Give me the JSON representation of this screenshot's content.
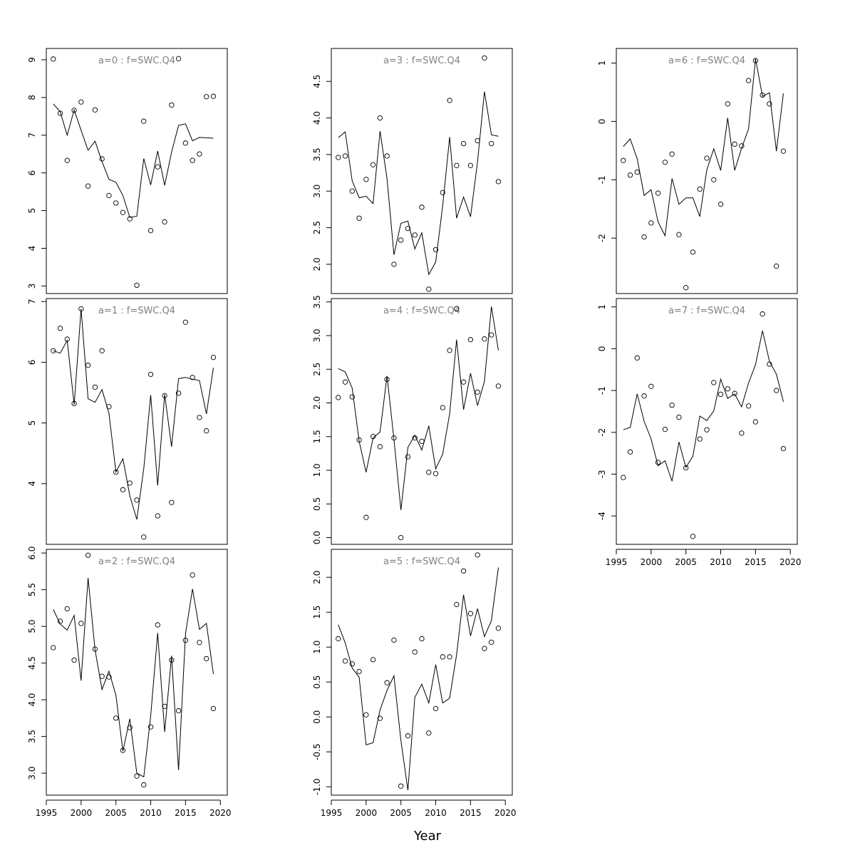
{
  "figure": {
    "xlabel": "Year"
  },
  "chart_data": [
    {
      "type": "line",
      "title": "a=0  :  f=SWC.Q4",
      "xlim": [
        1995,
        2021
      ],
      "ylim": [
        2.8,
        9.3
      ],
      "xticks": [
        1995,
        2000,
        2005,
        2010,
        2015,
        2020
      ],
      "xtick_labels_shown": false,
      "yticks": [
        3,
        4,
        5,
        6,
        7,
        8,
        9
      ],
      "x": [
        1996,
        1997,
        1998,
        1999,
        2000,
        2001,
        2002,
        2003,
        2004,
        2005,
        2006,
        2007,
        2008,
        2009,
        2010,
        2011,
        2012,
        2013,
        2014,
        2015,
        2016,
        2017,
        2018,
        2019
      ],
      "series": [
        {
          "name": "observed",
          "style": "points",
          "values": [
            9.02,
            7.58,
            6.33,
            7.66,
            7.88,
            5.65,
            7.67,
            6.37,
            5.4,
            5.2,
            4.95,
            4.78,
            3.02,
            7.37,
            4.47,
            6.16,
            4.7,
            7.8,
            9.03,
            6.79,
            6.33,
            6.5,
            8.02,
            8.03
          ]
        },
        {
          "name": "fitted",
          "style": "line",
          "values": [
            7.83,
            7.62,
            7.0,
            7.67,
            7.13,
            6.6,
            6.84,
            6.3,
            5.83,
            5.75,
            5.4,
            4.82,
            4.85,
            6.38,
            5.68,
            6.58,
            5.67,
            6.55,
            7.26,
            7.3,
            6.85,
            6.94,
            6.93,
            6.92
          ]
        }
      ]
    },
    {
      "type": "line",
      "title": "a=1  :  f=SWC.Q4",
      "xlim": [
        1995,
        2021
      ],
      "ylim": [
        3.0,
        7.05
      ],
      "xticks": [
        1995,
        2000,
        2005,
        2010,
        2015,
        2020
      ],
      "xtick_labels_shown": false,
      "yticks": [
        4,
        5,
        6,
        7
      ],
      "x": [
        1996,
        1997,
        1998,
        1999,
        2000,
        2001,
        2002,
        2003,
        2004,
        2005,
        2006,
        2007,
        2008,
        2009,
        2010,
        2011,
        2012,
        2013,
        2014,
        2015,
        2016,
        2017,
        2018,
        2019
      ],
      "series": [
        {
          "name": "observed",
          "style": "points",
          "values": [
            6.19,
            6.56,
            6.38,
            5.32,
            6.88,
            5.95,
            5.59,
            6.19,
            5.27,
            4.19,
            3.9,
            4.01,
            3.73,
            3.12,
            5.8,
            3.47,
            5.45,
            3.69,
            5.49,
            6.66,
            5.75,
            5.09,
            4.87,
            6.08
          ]
        },
        {
          "name": "fitted",
          "style": "line",
          "values": [
            6.19,
            6.15,
            6.36,
            5.3,
            6.88,
            5.4,
            5.34,
            5.55,
            5.16,
            4.19,
            4.41,
            3.8,
            3.41,
            4.25,
            5.46,
            3.97,
            5.47,
            4.61,
            5.73,
            5.75,
            5.72,
            5.7,
            5.15,
            5.91
          ]
        }
      ]
    },
    {
      "type": "line",
      "title": "a=2  :  f=SWC.Q4",
      "xlim": [
        1995,
        2021
      ],
      "ylim": [
        2.7,
        6.05
      ],
      "xticks": [
        1995,
        2000,
        2005,
        2010,
        2015,
        2020
      ],
      "xtick_labels_shown": true,
      "yticks": [
        3.0,
        3.5,
        4.0,
        4.5,
        5.0,
        5.5,
        6.0
      ],
      "x": [
        1996,
        1997,
        1998,
        1999,
        2000,
        2001,
        2002,
        2003,
        2004,
        2005,
        2006,
        2007,
        2008,
        2009,
        2010,
        2011,
        2012,
        2013,
        2014,
        2015,
        2016,
        2017,
        2018,
        2019
      ],
      "series": [
        {
          "name": "observed",
          "style": "points",
          "values": [
            4.71,
            5.07,
            5.24,
            4.54,
            5.04,
            5.97,
            4.69,
            4.32,
            4.31,
            3.75,
            3.31,
            3.62,
            2.96,
            2.84,
            3.63,
            5.02,
            3.91,
            4.54,
            3.85,
            4.81,
            5.7,
            4.78,
            4.56,
            3.88
          ]
        },
        {
          "name": "fitted",
          "style": "line",
          "values": [
            5.23,
            5.03,
            4.95,
            5.15,
            4.26,
            5.66,
            4.68,
            4.14,
            4.39,
            4.06,
            3.3,
            3.74,
            3.0,
            2.95,
            3.78,
            4.91,
            3.56,
            4.6,
            3.04,
            4.9,
            5.51,
            4.96,
            5.04,
            4.35
          ]
        }
      ]
    },
    {
      "type": "line",
      "title": "a=3  :  f=SWC.Q4",
      "xlim": [
        1995,
        2021
      ],
      "ylim": [
        1.6,
        4.95
      ],
      "xticks": [
        1995,
        2000,
        2005,
        2010,
        2015,
        2020
      ],
      "xtick_labels_shown": false,
      "yticks": [
        2.0,
        2.5,
        3.0,
        3.5,
        4.0,
        4.5
      ],
      "x": [
        1996,
        1997,
        1998,
        1999,
        2000,
        2001,
        2002,
        2003,
        2004,
        2005,
        2006,
        2007,
        2008,
        2009,
        2010,
        2011,
        2012,
        2013,
        2014,
        2015,
        2016,
        2017,
        2018,
        2019
      ],
      "series": [
        {
          "name": "observed",
          "style": "points",
          "values": [
            3.46,
            3.48,
            3.0,
            2.63,
            3.16,
            3.36,
            4.0,
            3.48,
            2.0,
            2.33,
            2.49,
            2.4,
            2.78,
            1.66,
            2.2,
            2.98,
            4.24,
            3.35,
            3.65,
            3.35,
            3.69,
            4.82,
            3.65,
            3.13
          ]
        },
        {
          "name": "fitted",
          "style": "line",
          "values": [
            3.73,
            3.81,
            3.14,
            2.91,
            2.93,
            2.83,
            3.82,
            3.17,
            2.13,
            2.56,
            2.59,
            2.21,
            2.43,
            1.86,
            2.03,
            2.8,
            3.74,
            2.63,
            2.92,
            2.65,
            3.4,
            4.36,
            3.77,
            3.75
          ]
        }
      ]
    },
    {
      "type": "line",
      "title": "a=4  :  f=SWC.Q4",
      "xlim": [
        1995,
        2021
      ],
      "ylim": [
        -0.1,
        3.55
      ],
      "xticks": [
        1995,
        2000,
        2005,
        2010,
        2015,
        2020
      ],
      "xtick_labels_shown": false,
      "yticks": [
        0.0,
        0.5,
        1.0,
        1.5,
        2.0,
        2.5,
        3.0,
        3.5
      ],
      "x": [
        1996,
        1997,
        1998,
        1999,
        2000,
        2001,
        2002,
        2003,
        2004,
        2005,
        2006,
        2007,
        2008,
        2009,
        2010,
        2011,
        2012,
        2013,
        2014,
        2015,
        2016,
        2017,
        2018,
        2019
      ],
      "series": [
        {
          "name": "observed",
          "style": "points",
          "values": [
            2.08,
            2.31,
            2.09,
            1.45,
            0.3,
            1.5,
            1.35,
            2.35,
            1.48,
            0.0,
            1.2,
            1.48,
            1.43,
            0.97,
            0.95,
            1.93,
            2.78,
            3.4,
            2.31,
            2.94,
            2.16,
            2.95,
            3.01,
            2.25
          ]
        },
        {
          "name": "fitted",
          "style": "line",
          "values": [
            2.51,
            2.46,
            2.22,
            1.43,
            0.97,
            1.48,
            1.57,
            2.4,
            1.46,
            0.41,
            1.34,
            1.52,
            1.3,
            1.66,
            1.02,
            1.24,
            1.84,
            2.94,
            1.9,
            2.44,
            1.96,
            2.32,
            3.43,
            2.78
          ]
        }
      ]
    },
    {
      "type": "line",
      "title": "a=5  :  f=SWC.Q4",
      "xlim": [
        1995,
        2021
      ],
      "ylim": [
        -1.12,
        2.4
      ],
      "xticks": [
        1995,
        2000,
        2005,
        2010,
        2015,
        2020
      ],
      "xtick_labels_shown": true,
      "yticks": [
        -1.0,
        -0.5,
        0.0,
        0.5,
        1.0,
        1.5,
        2.0
      ],
      "x": [
        1996,
        1997,
        1998,
        1999,
        2000,
        2001,
        2002,
        2003,
        2004,
        2005,
        2006,
        2007,
        2008,
        2009,
        2010,
        2011,
        2012,
        2013,
        2014,
        2015,
        2016,
        2017,
        2018,
        2019
      ],
      "series": [
        {
          "name": "observed",
          "style": "points",
          "values": [
            1.12,
            0.8,
            0.76,
            0.65,
            0.03,
            0.82,
            -0.02,
            0.49,
            1.1,
            -0.99,
            -0.27,
            0.93,
            1.12,
            -0.23,
            0.12,
            0.86,
            0.86,
            1.61,
            2.09,
            1.48,
            2.32,
            0.98,
            1.07,
            1.27
          ]
        },
        {
          "name": "fitted",
          "style": "line",
          "values": [
            1.32,
            1.06,
            0.7,
            0.57,
            -0.4,
            -0.37,
            0.1,
            0.38,
            0.59,
            -0.34,
            -1.05,
            0.28,
            0.47,
            0.2,
            0.75,
            0.2,
            0.27,
            0.89,
            1.75,
            1.16,
            1.55,
            1.15,
            1.38,
            2.14
          ]
        }
      ]
    },
    {
      "type": "line",
      "title": "a=6  :  f=SWC.Q4",
      "xlim": [
        1995,
        2021
      ],
      "ylim": [
        -2.95,
        1.25
      ],
      "xticks": [
        1995,
        2000,
        2005,
        2010,
        2015,
        2020
      ],
      "xtick_labels_shown": false,
      "yticks": [
        -2,
        -1,
        0,
        1
      ],
      "x": [
        1996,
        1997,
        1998,
        1999,
        2000,
        2001,
        2002,
        2003,
        2004,
        2005,
        2006,
        2007,
        2008,
        2009,
        2010,
        2011,
        2012,
        2013,
        2014,
        2015,
        2016,
        2017,
        2018,
        2019
      ],
      "series": [
        {
          "name": "observed",
          "style": "points",
          "values": [
            -0.67,
            -0.92,
            -0.87,
            -1.98,
            -1.74,
            -1.23,
            -0.7,
            -0.56,
            -1.94,
            -2.85,
            -2.24,
            -1.16,
            -0.63,
            -1.0,
            -1.42,
            0.3,
            -0.39,
            -0.42,
            0.7,
            1.04,
            0.45,
            0.3,
            -2.48,
            -0.51
          ]
        },
        {
          "name": "fitted",
          "style": "line",
          "values": [
            -0.43,
            -0.3,
            -0.64,
            -1.27,
            -1.17,
            -1.72,
            -1.96,
            -0.98,
            -1.42,
            -1.31,
            -1.31,
            -1.63,
            -0.83,
            -0.47,
            -0.84,
            0.06,
            -0.84,
            -0.46,
            -0.13,
            1.07,
            0.43,
            0.49,
            -0.51,
            0.48
          ]
        }
      ]
    },
    {
      "type": "line",
      "title": "a=7  :  f=SWC.Q4",
      "xlim": [
        1995,
        2021
      ],
      "ylim": [
        -4.68,
        1.2
      ],
      "xticks": [
        1995,
        2000,
        2005,
        2010,
        2015,
        2020
      ],
      "xtick_labels_shown": true,
      "yticks": [
        -4,
        -3,
        -2,
        -1,
        0,
        1
      ],
      "x": [
        1996,
        1997,
        1998,
        1999,
        2000,
        2001,
        2002,
        2003,
        2004,
        2005,
        2006,
        2007,
        2008,
        2009,
        2010,
        2011,
        2012,
        2013,
        2014,
        2015,
        2016,
        2017,
        2018,
        2019
      ],
      "series": [
        {
          "name": "observed",
          "style": "points",
          "values": [
            -3.08,
            -2.47,
            -0.22,
            -1.13,
            -0.9,
            -2.72,
            -1.93,
            -1.35,
            -1.64,
            -2.85,
            -4.49,
            -2.16,
            -1.94,
            -0.81,
            -1.09,
            -0.96,
            -1.07,
            -2.02,
            -1.37,
            -1.75,
            0.83,
            -0.37,
            -1.0,
            -2.39
          ]
        },
        {
          "name": "fitted",
          "style": "line",
          "values": [
            -1.94,
            -1.88,
            -1.08,
            -1.74,
            -2.16,
            -2.8,
            -2.68,
            -3.17,
            -2.23,
            -2.84,
            -2.57,
            -1.61,
            -1.72,
            -1.49,
            -0.73,
            -1.19,
            -1.08,
            -1.39,
            -0.82,
            -0.38,
            0.43,
            -0.3,
            -0.61,
            -1.27
          ]
        }
      ]
    }
  ]
}
